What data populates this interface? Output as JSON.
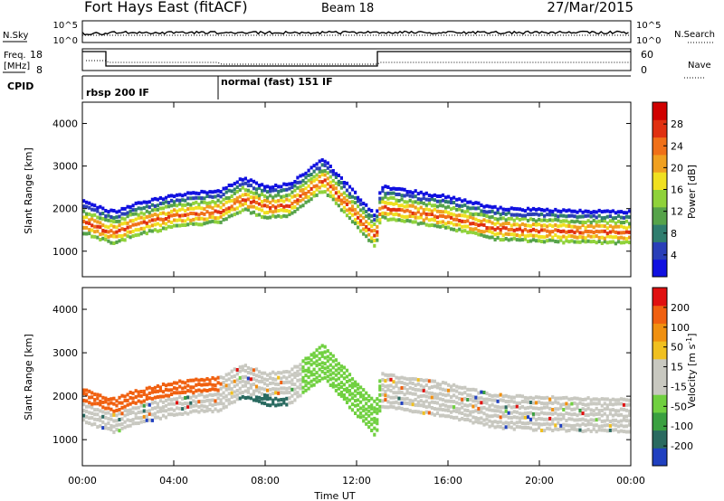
{
  "header": {
    "station": "Fort Hays East (fitACF)",
    "beam": "Beam 18",
    "date": "27/Mar/2015"
  },
  "panels_top": {
    "nsky_label": "N.Sky",
    "nsky_ticks": [
      "10^5",
      "10^0"
    ],
    "nsearch_label": "N.Search",
    "nsearch_ticks": [
      "10^5",
      "10^0"
    ],
    "freq_label": [
      "Freq.",
      "[MHz]"
    ],
    "freq_ticks": [
      "18",
      "8"
    ],
    "nave_label": "Nave",
    "nave_ticks": [
      "60",
      "0"
    ],
    "cpid_label": "CPID",
    "cpid_modes": [
      {
        "label": "rbsp 200 IF",
        "start_hour": 0.0
      },
      {
        "label": "normal (fast) 151 IF",
        "start_hour": 6.0
      }
    ]
  },
  "chart_data": [
    {
      "type": "heatmap",
      "name": "power",
      "xlabel": "Time UT",
      "ylabel": "Slant Range [km]",
      "xlim": [
        0,
        24
      ],
      "ylim": [
        400,
        4500
      ],
      "yticks": [
        1000,
        2000,
        3000,
        4000
      ],
      "xticks": [
        "00:00",
        "04:00",
        "08:00",
        "12:00",
        "16:00",
        "20:00",
        "00:00"
      ],
      "colorbar": {
        "label": "Power [dB]",
        "ticks": [
          "4",
          "8",
          "12",
          "16",
          "20",
          "24",
          "28"
        ],
        "colors": [
          "#1010e0",
          "#2a3fb8",
          "#2f7d6e",
          "#56a34a",
          "#8fd23a",
          "#f0e020",
          "#f0a020",
          "#f07018",
          "#e03010",
          "#d00000"
        ]
      },
      "echo_band_center_km": [
        {
          "t": 0.0,
          "r": 1700
        },
        {
          "t": 1.0,
          "r": 1500
        },
        {
          "t": 1.4,
          "r": 1450
        },
        {
          "t": 2.0,
          "r": 1600
        },
        {
          "t": 4.0,
          "r": 1850
        },
        {
          "t": 6.0,
          "r": 1950
        },
        {
          "t": 7.0,
          "r": 2250
        },
        {
          "t": 8.0,
          "r": 2050
        },
        {
          "t": 9.0,
          "r": 2100
        },
        {
          "t": 10.5,
          "r": 2700
        },
        {
          "t": 12.8,
          "r": 1350
        },
        {
          "t": 13.0,
          "r": 2050
        },
        {
          "t": 16.0,
          "r": 1800
        },
        {
          "t": 18.0,
          "r": 1550
        },
        {
          "t": 20.0,
          "r": 1500
        },
        {
          "t": 24.0,
          "r": 1450
        }
      ]
    },
    {
      "type": "heatmap",
      "name": "velocity",
      "xlabel": "Time UT",
      "ylabel": "Slant Range [km]",
      "xlim": [
        0,
        24
      ],
      "ylim": [
        400,
        4500
      ],
      "yticks": [
        1000,
        2000,
        3000,
        4000
      ],
      "xticks": [
        "00:00",
        "04:00",
        "08:00",
        "12:00",
        "16:00",
        "20:00",
        "00:00"
      ],
      "colorbar": {
        "label": "Velocity [m s",
        "label_sup": "-1",
        "label_end": "]",
        "ticks": [
          "200",
          "100",
          "50",
          "15",
          "-15",
          "-50",
          "-100",
          "-200"
        ],
        "colors": [
          "#2040c0",
          "#2a6a60",
          "#3aa040",
          "#70d040",
          "#c8c8c0",
          "#c8c8c0",
          "#f0c020",
          "#f09010",
          "#f06010",
          "#e01010"
        ]
      }
    }
  ],
  "xaxis_title": "Time UT"
}
